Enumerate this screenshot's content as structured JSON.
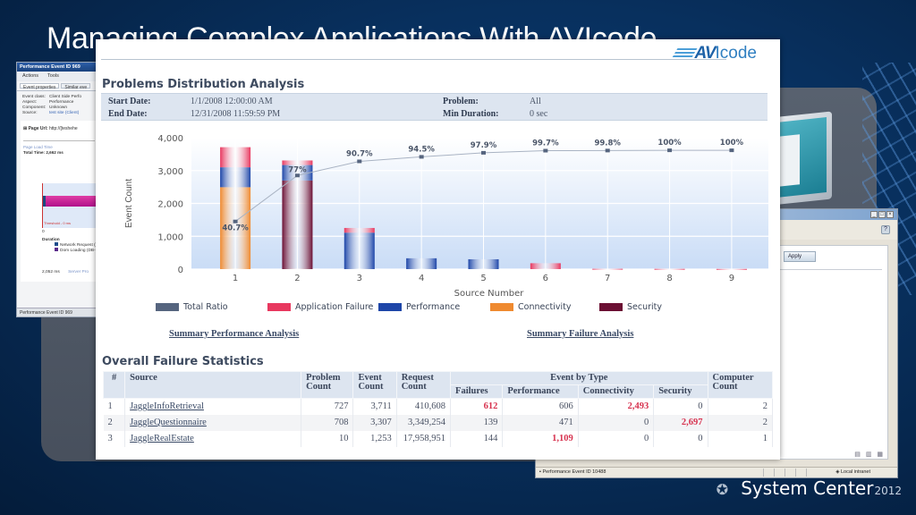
{
  "slide": {
    "title": "Managing Complex Applications With AVIcode",
    "footer_brand": "System Center",
    "footer_year": "2012"
  },
  "left_window": {
    "title": "Performance Event ID 969",
    "toolbar": [
      "Actions",
      "Tools"
    ],
    "tabs": [
      "Event properties",
      "Similar eve"
    ],
    "props": [
      {
        "label": "Event class:",
        "value": "Client Side Perfo"
      },
      {
        "label": "Aspect:",
        "value": "Performance"
      },
      {
        "label": "Component:",
        "value": "Unknown"
      },
      {
        "label": "Source:",
        "value": "test site (Client)"
      }
    ],
    "page_url_label": "Page Url:",
    "page_url_value": "http://[teshehe",
    "page_load_time": "Page Load Time",
    "total_time": "Total Time: 2,662 ms",
    "threshold": "Threshold - 0 ms",
    "axis_zero": "0",
    "duration_label": "Duration",
    "duration_legend": [
      {
        "label": "Network Request (",
        "color": "#1f4e8c"
      },
      {
        "label": "Dom Loading (DB-",
        "color": "#5a2a8a"
      }
    ],
    "footer_value": "2,052 ms",
    "footer_link": "Server Pro",
    "status": "Performance Event ID 969"
  },
  "right_window": {
    "controls": [
      "_",
      "□",
      "×"
    ],
    "apply_label": "Apply",
    "status": "Performance Event ID 10488",
    "zone": "Local intranet"
  },
  "report": {
    "logo_prefix": "AV",
    "logo_suffix": "Icode",
    "title": "Problems Distribution Analysis",
    "filters": {
      "start_label": "Start Date:",
      "start_value": "1/1/2008 12:00:00 AM",
      "end_label": "End Date:",
      "end_value": "12/31/2008 11:59:59 PM",
      "problem_label": "Problem:",
      "problem_value": "All",
      "min_label": "Min Duration:",
      "min_value": "0 sec"
    },
    "links": {
      "perf": "Summary Performance Analysis",
      "fail": "Summary Failure Analysis"
    },
    "stats_title": "Overall Failure Statistics",
    "table": {
      "headers": {
        "num": "#",
        "source": "Source",
        "problem_count": "Problem Count",
        "event_count": "Event Count",
        "request_count": "Request Count",
        "event_by_type": "Event by Type",
        "failures": "Failures",
        "performance": "Performance",
        "connectivity": "Connectivity",
        "security": "Security",
        "computer_count": "Computer Count"
      },
      "rows": [
        {
          "num": "1",
          "source": "JaggleInfoRetrieval",
          "problem_count": "727",
          "event_count": "3,711",
          "request_count": "410,608",
          "failures": "612",
          "performance": "606",
          "connectivity": "2,493",
          "security": "0",
          "computer_count": "2",
          "highlight": [
            "failures",
            "connectivity"
          ]
        },
        {
          "num": "2",
          "source": "JaggleQuestionnaire",
          "problem_count": "708",
          "event_count": "3,307",
          "request_count": "3,349,254",
          "failures": "139",
          "performance": "471",
          "connectivity": "0",
          "security": "2,697",
          "computer_count": "2",
          "highlight": [
            "security"
          ]
        },
        {
          "num": "3",
          "source": "JaggleRealEstate",
          "problem_count": "10",
          "event_count": "1,253",
          "request_count": "17,958,951",
          "failures": "144",
          "performance": "1,109",
          "connectivity": "0",
          "security": "0",
          "computer_count": "1",
          "highlight": [
            "performance"
          ]
        }
      ]
    }
  },
  "colors": {
    "total_ratio": "#56657f",
    "application_failure": "#e8385f",
    "performance": "#1e46a8",
    "connectivity": "#ef8a30",
    "security": "#6b0f33",
    "highlight": "#d7324f"
  },
  "chart_data": {
    "type": "bar",
    "stacked": true,
    "title": "",
    "xlabel": "Source Number",
    "ylabel": "Event Count",
    "ylim": [
      0,
      4000
    ],
    "yticks": [
      0,
      1000,
      2000,
      3000,
      4000
    ],
    "ytick_labels": [
      "0",
      "1,000",
      "2,000",
      "3,000",
      "4,000"
    ],
    "categories": [
      "1",
      "2",
      "3",
      "4",
      "5",
      "6",
      "7",
      "8",
      "9"
    ],
    "series": [
      {
        "name": "Connectivity",
        "color_key": "connectivity",
        "values": [
          2493,
          0,
          0,
          0,
          0,
          0,
          0,
          0,
          0
        ]
      },
      {
        "name": "Security",
        "color_key": "security",
        "values": [
          0,
          2697,
          0,
          0,
          0,
          0,
          0,
          0,
          0
        ]
      },
      {
        "name": "Performance",
        "color_key": "performance",
        "values": [
          606,
          471,
          1109,
          330,
          300,
          0,
          0,
          0,
          0
        ]
      },
      {
        "name": "Application Failure",
        "color_key": "application_failure",
        "values": [
          612,
          139,
          144,
          0,
          0,
          180,
          10,
          8,
          6
        ]
      }
    ],
    "line": {
      "name": "Total Ratio",
      "color_key": "total_ratio",
      "labels": [
        "40.7%",
        "77%",
        "90.7%",
        "94.5%",
        "97.9%",
        "99.7%",
        "99.8%",
        "100%",
        "100%"
      ],
      "values_pct": [
        40.7,
        77,
        90.7,
        94.5,
        97.9,
        99.7,
        99.8,
        100,
        100
      ]
    },
    "legend": [
      {
        "label": "Total Ratio",
        "color_key": "total_ratio"
      },
      {
        "label": "Application Failure",
        "color_key": "application_failure"
      },
      {
        "label": "Performance",
        "color_key": "performance"
      },
      {
        "label": "Connectivity",
        "color_key": "connectivity"
      },
      {
        "label": "Security",
        "color_key": "security"
      }
    ],
    "legend_position": "bottom",
    "grid": true
  }
}
